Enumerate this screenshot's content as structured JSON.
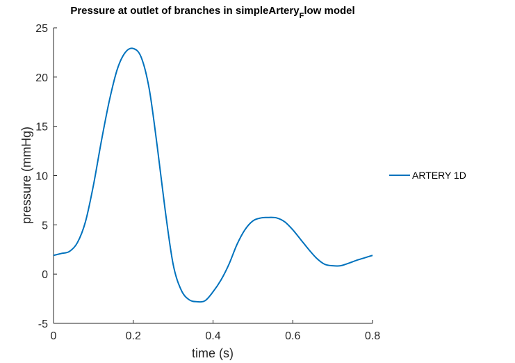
{
  "chart_data": {
    "type": "line",
    "title": {
      "main": "Pressure at outlet of branches in simpleArtery",
      "subscript": "F",
      "suffix": "low model"
    },
    "xlabel": "time (s)",
    "ylabel": "pressure (mmHg)",
    "xlim": [
      0,
      0.8
    ],
    "ylim": [
      -5,
      25
    ],
    "xticks": [
      0,
      0.2,
      0.4,
      0.6,
      0.8
    ],
    "xtick_labels": [
      "0",
      "0.2",
      "0.4",
      "0.6",
      "0.8"
    ],
    "yticks": [
      -5,
      0,
      5,
      10,
      15,
      20,
      25
    ],
    "ytick_labels": [
      "-5",
      "0",
      "5",
      "10",
      "15",
      "20",
      "25"
    ],
    "grid": false,
    "legend_position": "outside-right",
    "series": [
      {
        "name": "ARTERY 1D",
        "color": "#0072BD",
        "x": [
          0,
          0.02,
          0.04,
          0.06,
          0.08,
          0.1,
          0.12,
          0.14,
          0.16,
          0.18,
          0.2,
          0.22,
          0.24,
          0.26,
          0.28,
          0.3,
          0.32,
          0.34,
          0.36,
          0.38,
          0.4,
          0.42,
          0.44,
          0.46,
          0.48,
          0.5,
          0.52,
          0.54,
          0.56,
          0.58,
          0.6,
          0.62,
          0.64,
          0.66,
          0.68,
          0.7,
          0.72,
          0.74,
          0.76,
          0.78,
          0.8
        ],
        "y": [
          1.9,
          2.1,
          2.3,
          3.2,
          5.3,
          9.0,
          13.5,
          17.6,
          20.8,
          22.5,
          22.9,
          22.0,
          18.8,
          13.0,
          6.5,
          1.0,
          -1.6,
          -2.6,
          -2.8,
          -2.7,
          -1.8,
          -0.6,
          1.0,
          3.0,
          4.5,
          5.4,
          5.7,
          5.75,
          5.7,
          5.3,
          4.5,
          3.5,
          2.5,
          1.6,
          1.0,
          0.85,
          0.85,
          1.1,
          1.4,
          1.65,
          1.9
        ]
      }
    ]
  }
}
